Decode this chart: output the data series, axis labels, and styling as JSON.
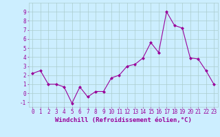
{
  "x": [
    0,
    1,
    2,
    3,
    4,
    5,
    6,
    7,
    8,
    9,
    10,
    11,
    12,
    13,
    14,
    15,
    16,
    17,
    18,
    19,
    20,
    21,
    22,
    23
  ],
  "y": [
    2.2,
    2.5,
    1.0,
    1.0,
    0.7,
    -1.1,
    0.7,
    -0.4,
    0.2,
    0.2,
    1.7,
    2.0,
    3.0,
    3.2,
    3.9,
    5.6,
    4.5,
    9.0,
    7.5,
    7.2,
    3.9,
    3.8,
    2.5,
    1.0
  ],
  "xlim": [
    -0.5,
    23.5
  ],
  "ylim": [
    -1.5,
    10.0
  ],
  "yticks": [
    -1,
    0,
    1,
    2,
    3,
    4,
    5,
    6,
    7,
    8,
    9
  ],
  "xticks": [
    0,
    1,
    2,
    3,
    4,
    5,
    6,
    7,
    8,
    9,
    10,
    11,
    12,
    13,
    14,
    15,
    16,
    17,
    18,
    19,
    20,
    21,
    22,
    23
  ],
  "xlabel": "Windchill (Refroidissement éolien,°C)",
  "line_color": "#990099",
  "marker": "D",
  "marker_size": 2.0,
  "background_color": "#cceeff",
  "grid_color": "#aacccc",
  "label_fontsize": 6.5,
  "tick_fontsize": 5.5
}
